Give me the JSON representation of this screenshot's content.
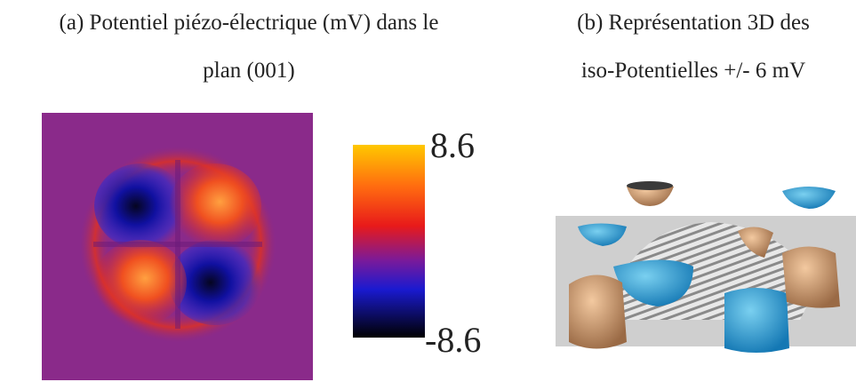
{
  "panels": [
    {
      "caption": [
        "(a) Potentiel piézo-électrique (mV) dans le",
        "plan (001)"
      ],
      "colorbar": {
        "max": "8.6",
        "min": "-8.6"
      }
    },
    {
      "caption": [
        "(b) Représentation 3D des",
        "iso-Potentielles +/- 6 mV"
      ]
    }
  ]
}
